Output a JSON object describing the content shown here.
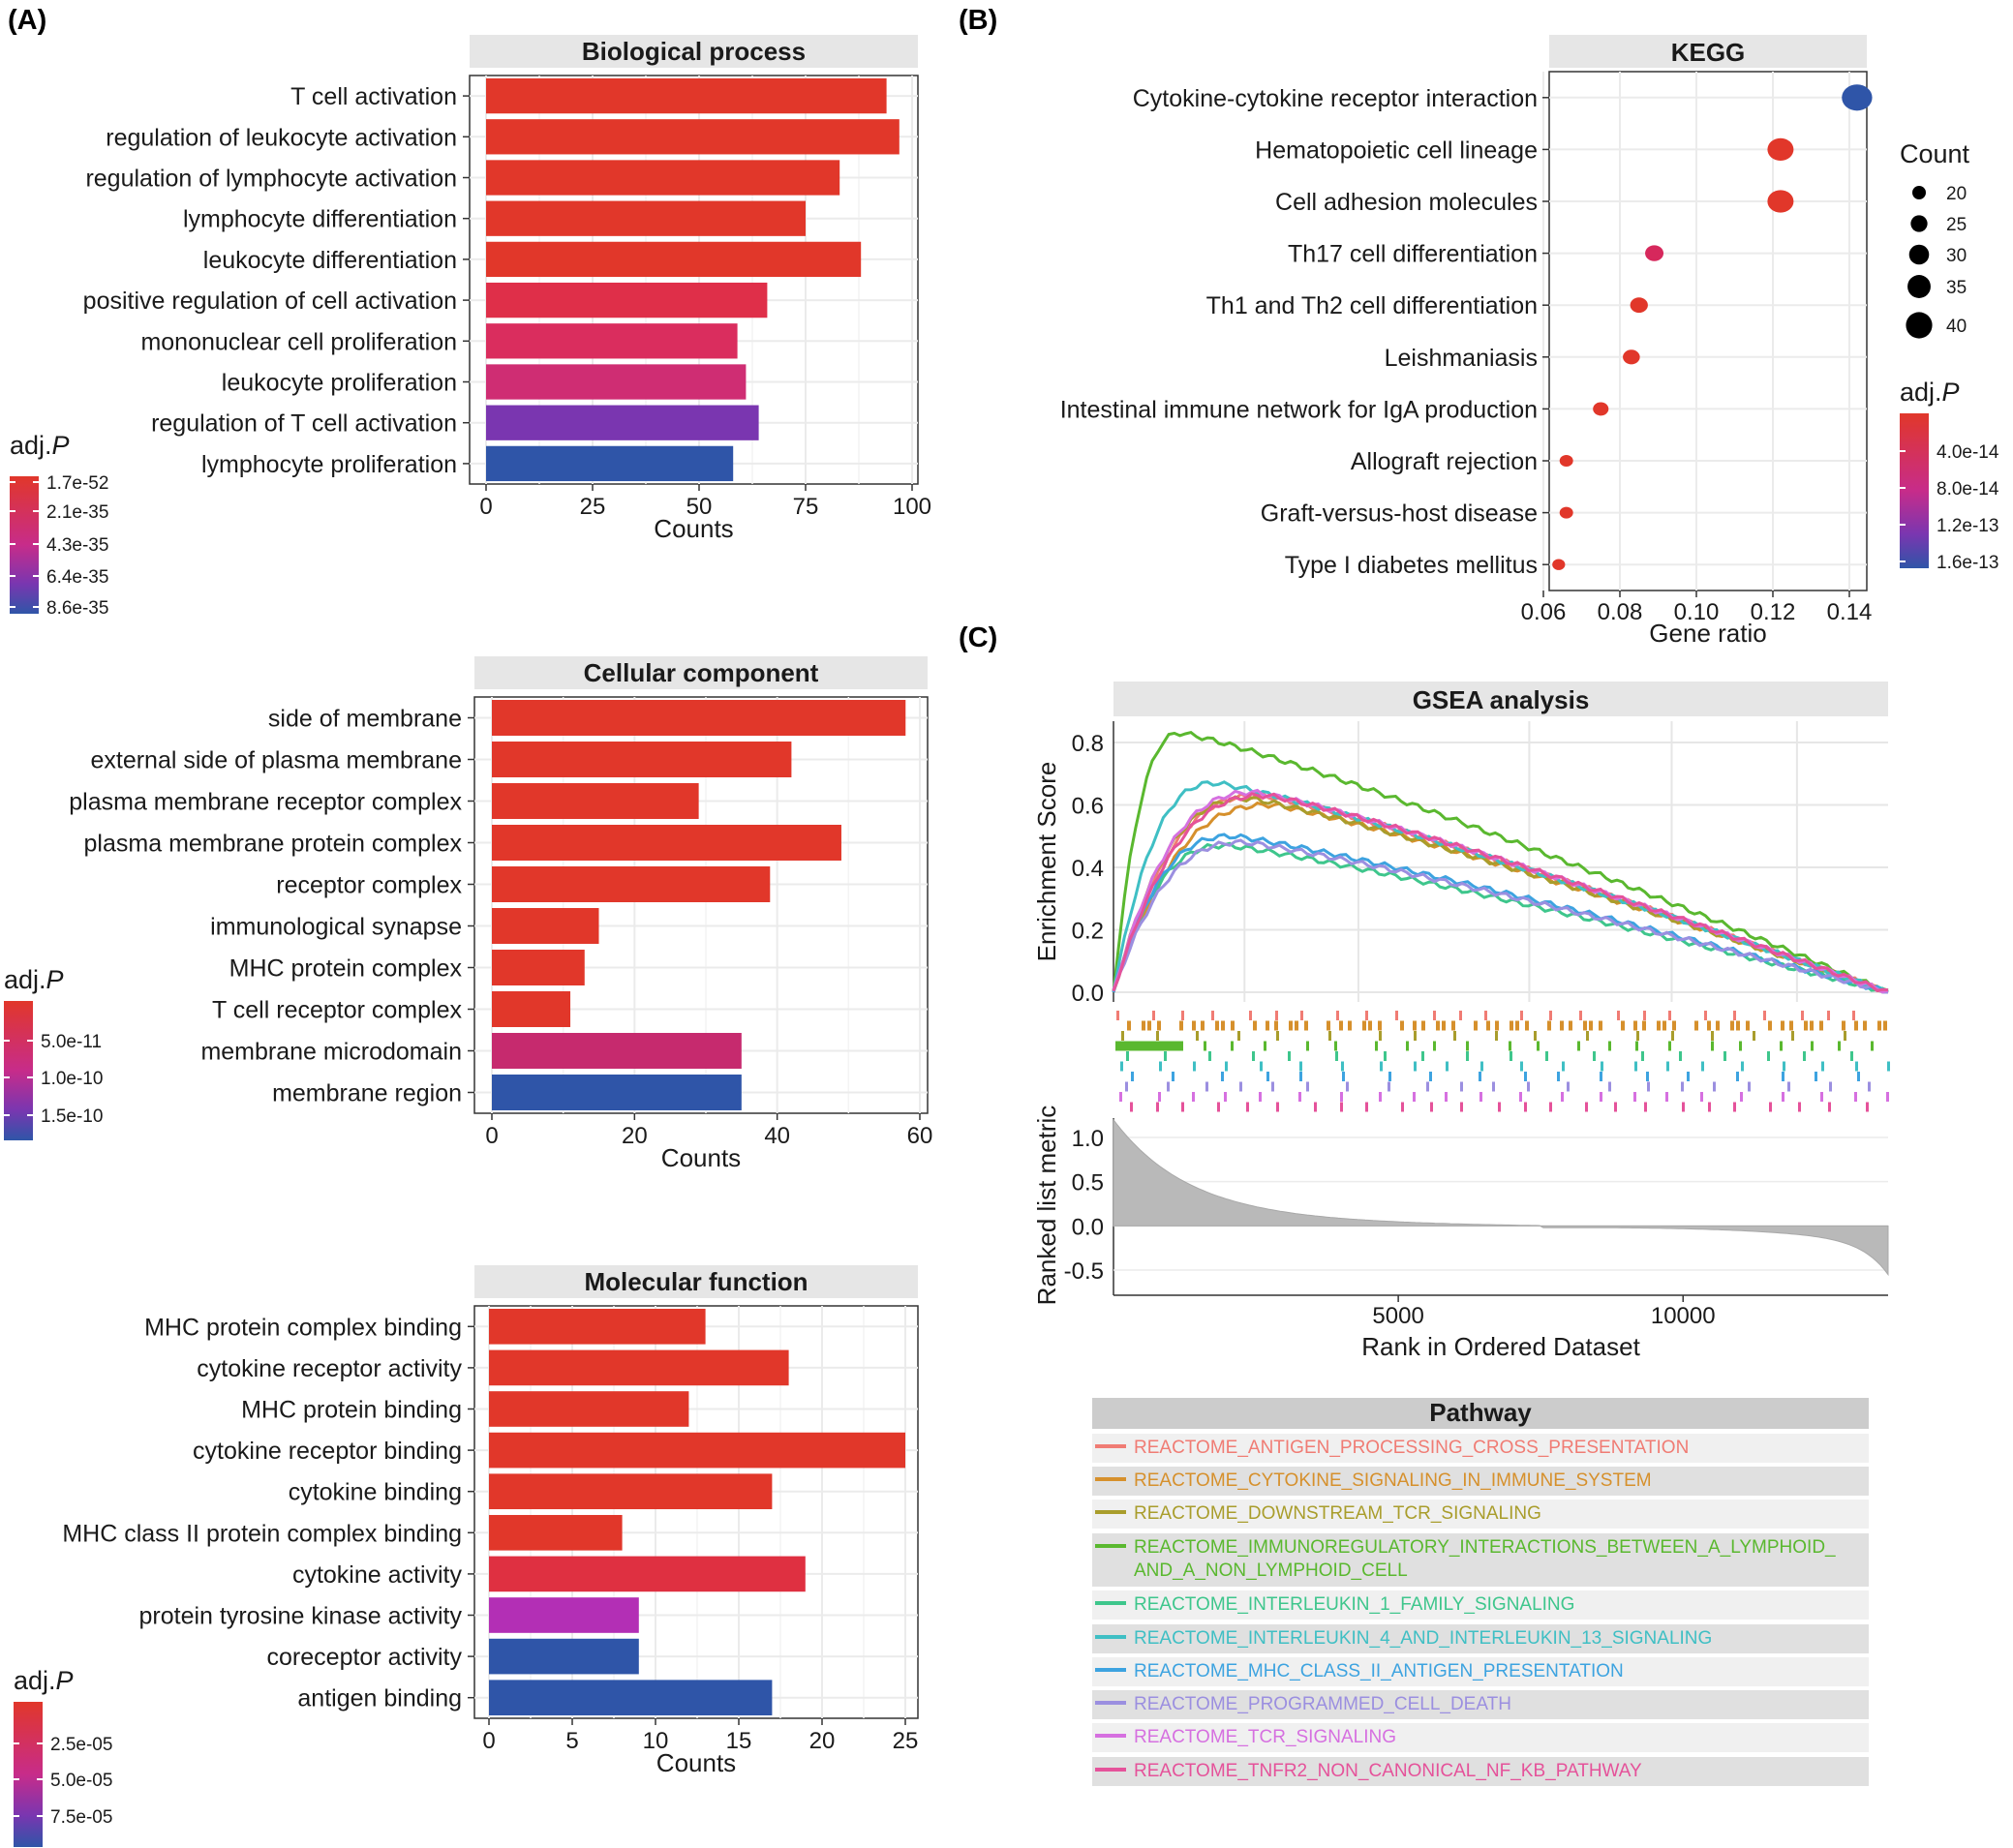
{
  "panel_labels": {
    "a": "(A)",
    "b": "(B)",
    "c": "(C)"
  },
  "chart_data": [
    {
      "id": "bp",
      "type": "bar",
      "title": "Biological process",
      "xlabel": "Counts",
      "orientation": "horizontal",
      "xlim": [
        0,
        100
      ],
      "xticks": [
        0,
        25,
        50,
        75,
        100
      ],
      "categories": [
        "T cell activation",
        "regulation of leukocyte activation",
        "regulation of lymphocyte activation",
        "lymphocyte differentiation",
        "leukocyte differentiation",
        "positive regulation of cell activation",
        "mononuclear cell proliferation",
        "leukocyte proliferation",
        "regulation of T cell activation",
        "lymphocyte proliferation"
      ],
      "values": [
        94,
        97,
        83,
        75,
        88,
        66,
        59,
        61,
        64,
        58
      ],
      "colors": [
        "#e1372a",
        "#e1372a",
        "#e1372a",
        "#e1372a",
        "#e1372a",
        "#df2f49",
        "#da2d5e",
        "#cf2d73",
        "#7a36b0",
        "#2f55a8"
      ],
      "legend": {
        "title": "adj.",
        "title_italic": "P",
        "ticks": [
          "1.7e-52",
          "2.1e-35",
          "4.3e-35",
          "6.4e-35",
          "8.6e-35"
        ]
      }
    },
    {
      "id": "cc",
      "type": "bar",
      "title": "Cellular component",
      "xlabel": "Counts",
      "orientation": "horizontal",
      "xlim": [
        0,
        60
      ],
      "xticks": [
        0,
        20,
        40,
        60
      ],
      "categories": [
        "side of membrane",
        "external side of plasma membrane",
        "plasma membrane receptor complex",
        "plasma membrane protein complex",
        "receptor complex",
        "immunological synapse",
        "MHC protein complex",
        "T cell receptor complex",
        "membrane microdomain",
        "membrane region"
      ],
      "values": [
        58,
        42,
        29,
        49,
        39,
        15,
        13,
        11,
        35,
        35
      ],
      "colors": [
        "#e1372a",
        "#e1372a",
        "#e1372a",
        "#e1372a",
        "#e1372a",
        "#e1372a",
        "#e1372a",
        "#e1372a",
        "#c62a6e",
        "#2f55a8"
      ],
      "legend": {
        "title": "adj.",
        "title_italic": "P",
        "ticks": [
          "5.0e-11",
          "1.0e-10",
          "1.5e-10"
        ]
      }
    },
    {
      "id": "mf",
      "type": "bar",
      "title": "Molecular function",
      "xlabel": "Counts",
      "orientation": "horizontal",
      "xlim": [
        0,
        25
      ],
      "xticks": [
        0,
        5,
        10,
        15,
        20,
        25
      ],
      "categories": [
        "MHC protein complex binding",
        "cytokine receptor activity",
        "MHC protein binding",
        "cytokine receptor binding",
        "cytokine binding",
        "MHC class II protein complex binding",
        "cytokine activity",
        "protein tyrosine kinase activity",
        "coreceptor activity",
        "antigen binding"
      ],
      "values": [
        13,
        18,
        12,
        25,
        17,
        8,
        19,
        9,
        9,
        17
      ],
      "colors": [
        "#e1372a",
        "#e1372a",
        "#e1372a",
        "#e1372a",
        "#e1372a",
        "#e1372a",
        "#df3041",
        "#b32fb5",
        "#2f55a8",
        "#2f55a8"
      ],
      "legend": {
        "title": "adj.",
        "title_italic": "P",
        "ticks": [
          "2.5e-05",
          "5.0e-05",
          "7.5e-05"
        ]
      }
    },
    {
      "id": "kegg",
      "type": "scatter",
      "title": "KEGG",
      "xlabel": "Gene ratio",
      "xlim": [
        0.06,
        0.145
      ],
      "xticks": [
        "0.06",
        "0.08",
        "0.10",
        "0.12",
        "0.14"
      ],
      "categories": [
        "Cytokine-cytokine receptor interaction",
        "Hematopoietic cell lineage",
        "Cell adhesion molecules",
        "Th17 cell differentiation",
        "Th1 and Th2 cell differentiation",
        "Leishmaniasis",
        "Intestinal immune network for IgA production",
        "Allograft rejection",
        "Graft-versus-host disease",
        "Type I diabetes mellitus"
      ],
      "x": [
        0.142,
        0.122,
        0.122,
        0.089,
        0.085,
        0.083,
        0.075,
        0.066,
        0.066,
        0.064
      ],
      "counts": [
        42,
        36,
        36,
        25,
        24,
        23,
        21,
        18,
        18,
        17
      ],
      "colors": [
        "#2f55a8",
        "#e1372a",
        "#e1372a",
        "#d6285c",
        "#e1372a",
        "#e1372a",
        "#e1372a",
        "#e1372a",
        "#e1372a",
        "#e1372a"
      ],
      "size_legend": {
        "title": "Count",
        "values": [
          20,
          25,
          30,
          35,
          40
        ]
      },
      "color_legend": {
        "title": "adj.",
        "title_italic": "P",
        "ticks": [
          "4.0e-14",
          "8.0e-14",
          "1.2e-13",
          "1.6e-13"
        ]
      }
    },
    {
      "id": "gsea",
      "type": "line",
      "title": "GSEA analysis",
      "xlabel": "Rank in Ordered Dataset",
      "ylabel": "Enrichment Score",
      "ylabel2": "Ranked list metric",
      "xlim": [
        0,
        13600
      ],
      "xticks": [
        5000,
        10000
      ],
      "ylim": [
        0,
        0.85
      ],
      "yticks": [
        "0.0",
        "0.2",
        "0.4",
        "0.6",
        "0.8"
      ],
      "metric_yticks": [
        "1.0",
        "0.5",
        "0.0",
        "-0.5"
      ],
      "legend_title": "Pathway",
      "series": [
        {
          "name": "REACTOME_ANTIGEN_PROCESSING_CROSS_PRESENTATION",
          "color": "#f07c74",
          "peak_x": 2600,
          "peak": 0.63
        },
        {
          "name": "REACTOME_CYTOKINE_SIGNALING_IN_IMMUNE_SYSTEM",
          "color": "#d6902c",
          "peak_x": 2800,
          "peak": 0.6
        },
        {
          "name": "REACTOME_DOWNSTREAM_TCR_SIGNALING",
          "color": "#a99d2c",
          "peak_x": 2400,
          "peak": 0.62
        },
        {
          "name": "REACTOME_IMMUNOREGULATORY_INTERACTIONS_BETWEEN_A_LYMPHOID_\nAND_A_NON_LYMPHOID_CELL",
          "color": "#5ab82f",
          "peak_x": 1200,
          "peak": 0.83
        },
        {
          "name": "REACTOME_INTERLEUKIN_1_FAMILY_SIGNALING",
          "color": "#3ec68c",
          "peak_x": 2000,
          "peak": 0.47
        },
        {
          "name": "REACTOME_INTERLEUKIN_4_AND_INTERLEUKIN_13_SIGNALING",
          "color": "#3fbfc4",
          "peak_x": 1800,
          "peak": 0.67
        },
        {
          "name": "REACTOME_MHC_CLASS_II_ANTIGEN_PRESENTATION",
          "color": "#3da3e0",
          "peak_x": 2100,
          "peak": 0.5
        },
        {
          "name": "REACTOME_PROGRAMMED_CELL_DEATH",
          "color": "#9b8fe0",
          "peak_x": 2300,
          "peak": 0.48
        },
        {
          "name": "REACTOME_TCR_SIGNALING",
          "color": "#d670e0",
          "peak_x": 2500,
          "peak": 0.64
        },
        {
          "name": "REACTOME_TNFR2_NON_CANONICAL_NF_KB_PATHWAY",
          "color": "#e5529a",
          "peak_x": 2700,
          "peak": 0.63
        }
      ]
    }
  ]
}
